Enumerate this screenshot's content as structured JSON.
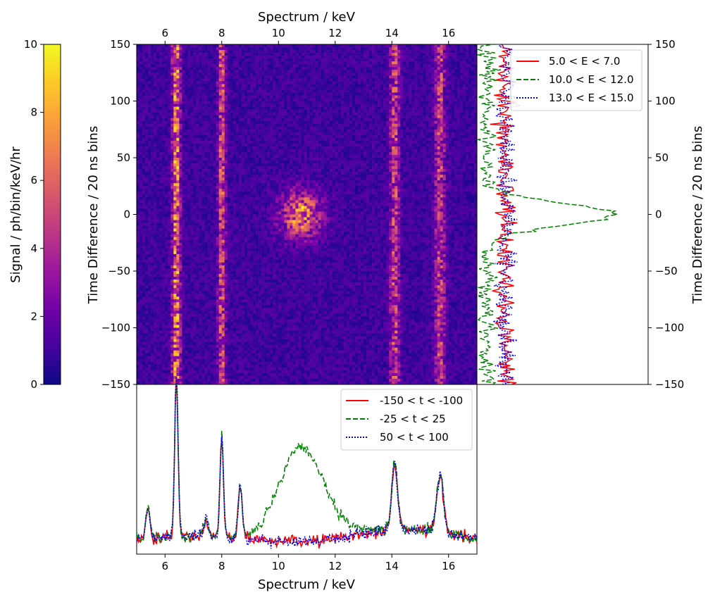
{
  "colors": {
    "cmap": [
      "#0d0887",
      "#46039f",
      "#7201a8",
      "#9c179e",
      "#bd3786",
      "#d8576b",
      "#ed7953",
      "#fb9f3a",
      "#fdca26",
      "#f0f921"
    ],
    "series": [
      "#ff0000",
      "#008000",
      "#0000ff"
    ]
  },
  "chart_data": [
    {
      "type": "heatmap",
      "title": "",
      "xlabel": "Spectrum / keV",
      "ylabel": "Time Difference / 20 ns bins",
      "xlim": [
        5.0,
        17.0
      ],
      "ylim": [
        -150,
        150
      ],
      "x_ticks": [
        "6",
        "8",
        "10",
        "12",
        "14",
        "16"
      ],
      "x_tick_values": [
        6,
        8,
        10,
        12,
        14,
        16
      ],
      "y_ticks": [
        "150",
        "100",
        "50",
        "0",
        "−50",
        "−100",
        "−150"
      ],
      "y_tick_values": [
        150,
        100,
        50,
        0,
        -50,
        -100,
        -150
      ],
      "colormap": "plasma",
      "emission_lines_keV": [
        6.4,
        8.0,
        14.1,
        15.7
      ],
      "coincidence_blob": {
        "center_keV": 10.8,
        "center_t": 0,
        "width_keV": 1.6,
        "height_t": 45
      }
    },
    {
      "type": "colorbar",
      "label": "Signal / ph/bin/keV/hr",
      "range": [
        0,
        10
      ],
      "ticks": [
        "0",
        "2",
        "4",
        "6",
        "8",
        "10"
      ],
      "tick_values": [
        0,
        2,
        4,
        6,
        8,
        10
      ]
    },
    {
      "type": "line",
      "orientation": "vertical",
      "ylabel": "Time Difference / 20 ns bins",
      "ylim": [
        -150,
        150
      ],
      "y_ticks": [
        "150",
        "100",
        "50",
        "0",
        "−50",
        "−100",
        "−150"
      ],
      "y_tick_values": [
        150,
        100,
        50,
        0,
        -50,
        -100,
        -150
      ],
      "legend_position": "top-right",
      "series": [
        {
          "name": "5.0 < E < 7.0",
          "style": "solid",
          "baseline": 1.0,
          "noise": 0.2
        },
        {
          "name": "10.0 < E < 12.0",
          "style": "dashed",
          "baseline": 0.35,
          "noise": 0.25,
          "peak_center_t": 0,
          "peak_value": 4.8
        },
        {
          "name": "13.0 < E < 15.0",
          "style": "dotted",
          "baseline": 1.0,
          "noise": 0.2
        }
      ]
    },
    {
      "type": "line",
      "xlabel": "Spectrum / keV",
      "xlim": [
        5.0,
        17.0
      ],
      "x_ticks": [
        "6",
        "8",
        "10",
        "12",
        "14",
        "16"
      ],
      "x_tick_values": [
        6,
        8,
        10,
        12,
        14,
        16
      ],
      "legend_position": "top-right",
      "peaks_keV": [
        5.4,
        6.4,
        7.45,
        8.0,
        8.65,
        14.1,
        15.7
      ],
      "series": [
        {
          "name": "-150 < t < -100",
          "style": "solid"
        },
        {
          "name": "-25 < t < 25",
          "style": "dashed",
          "extra_peak_keV": 10.8
        },
        {
          "name": "50 < t < 100",
          "style": "dotted"
        }
      ]
    }
  ]
}
